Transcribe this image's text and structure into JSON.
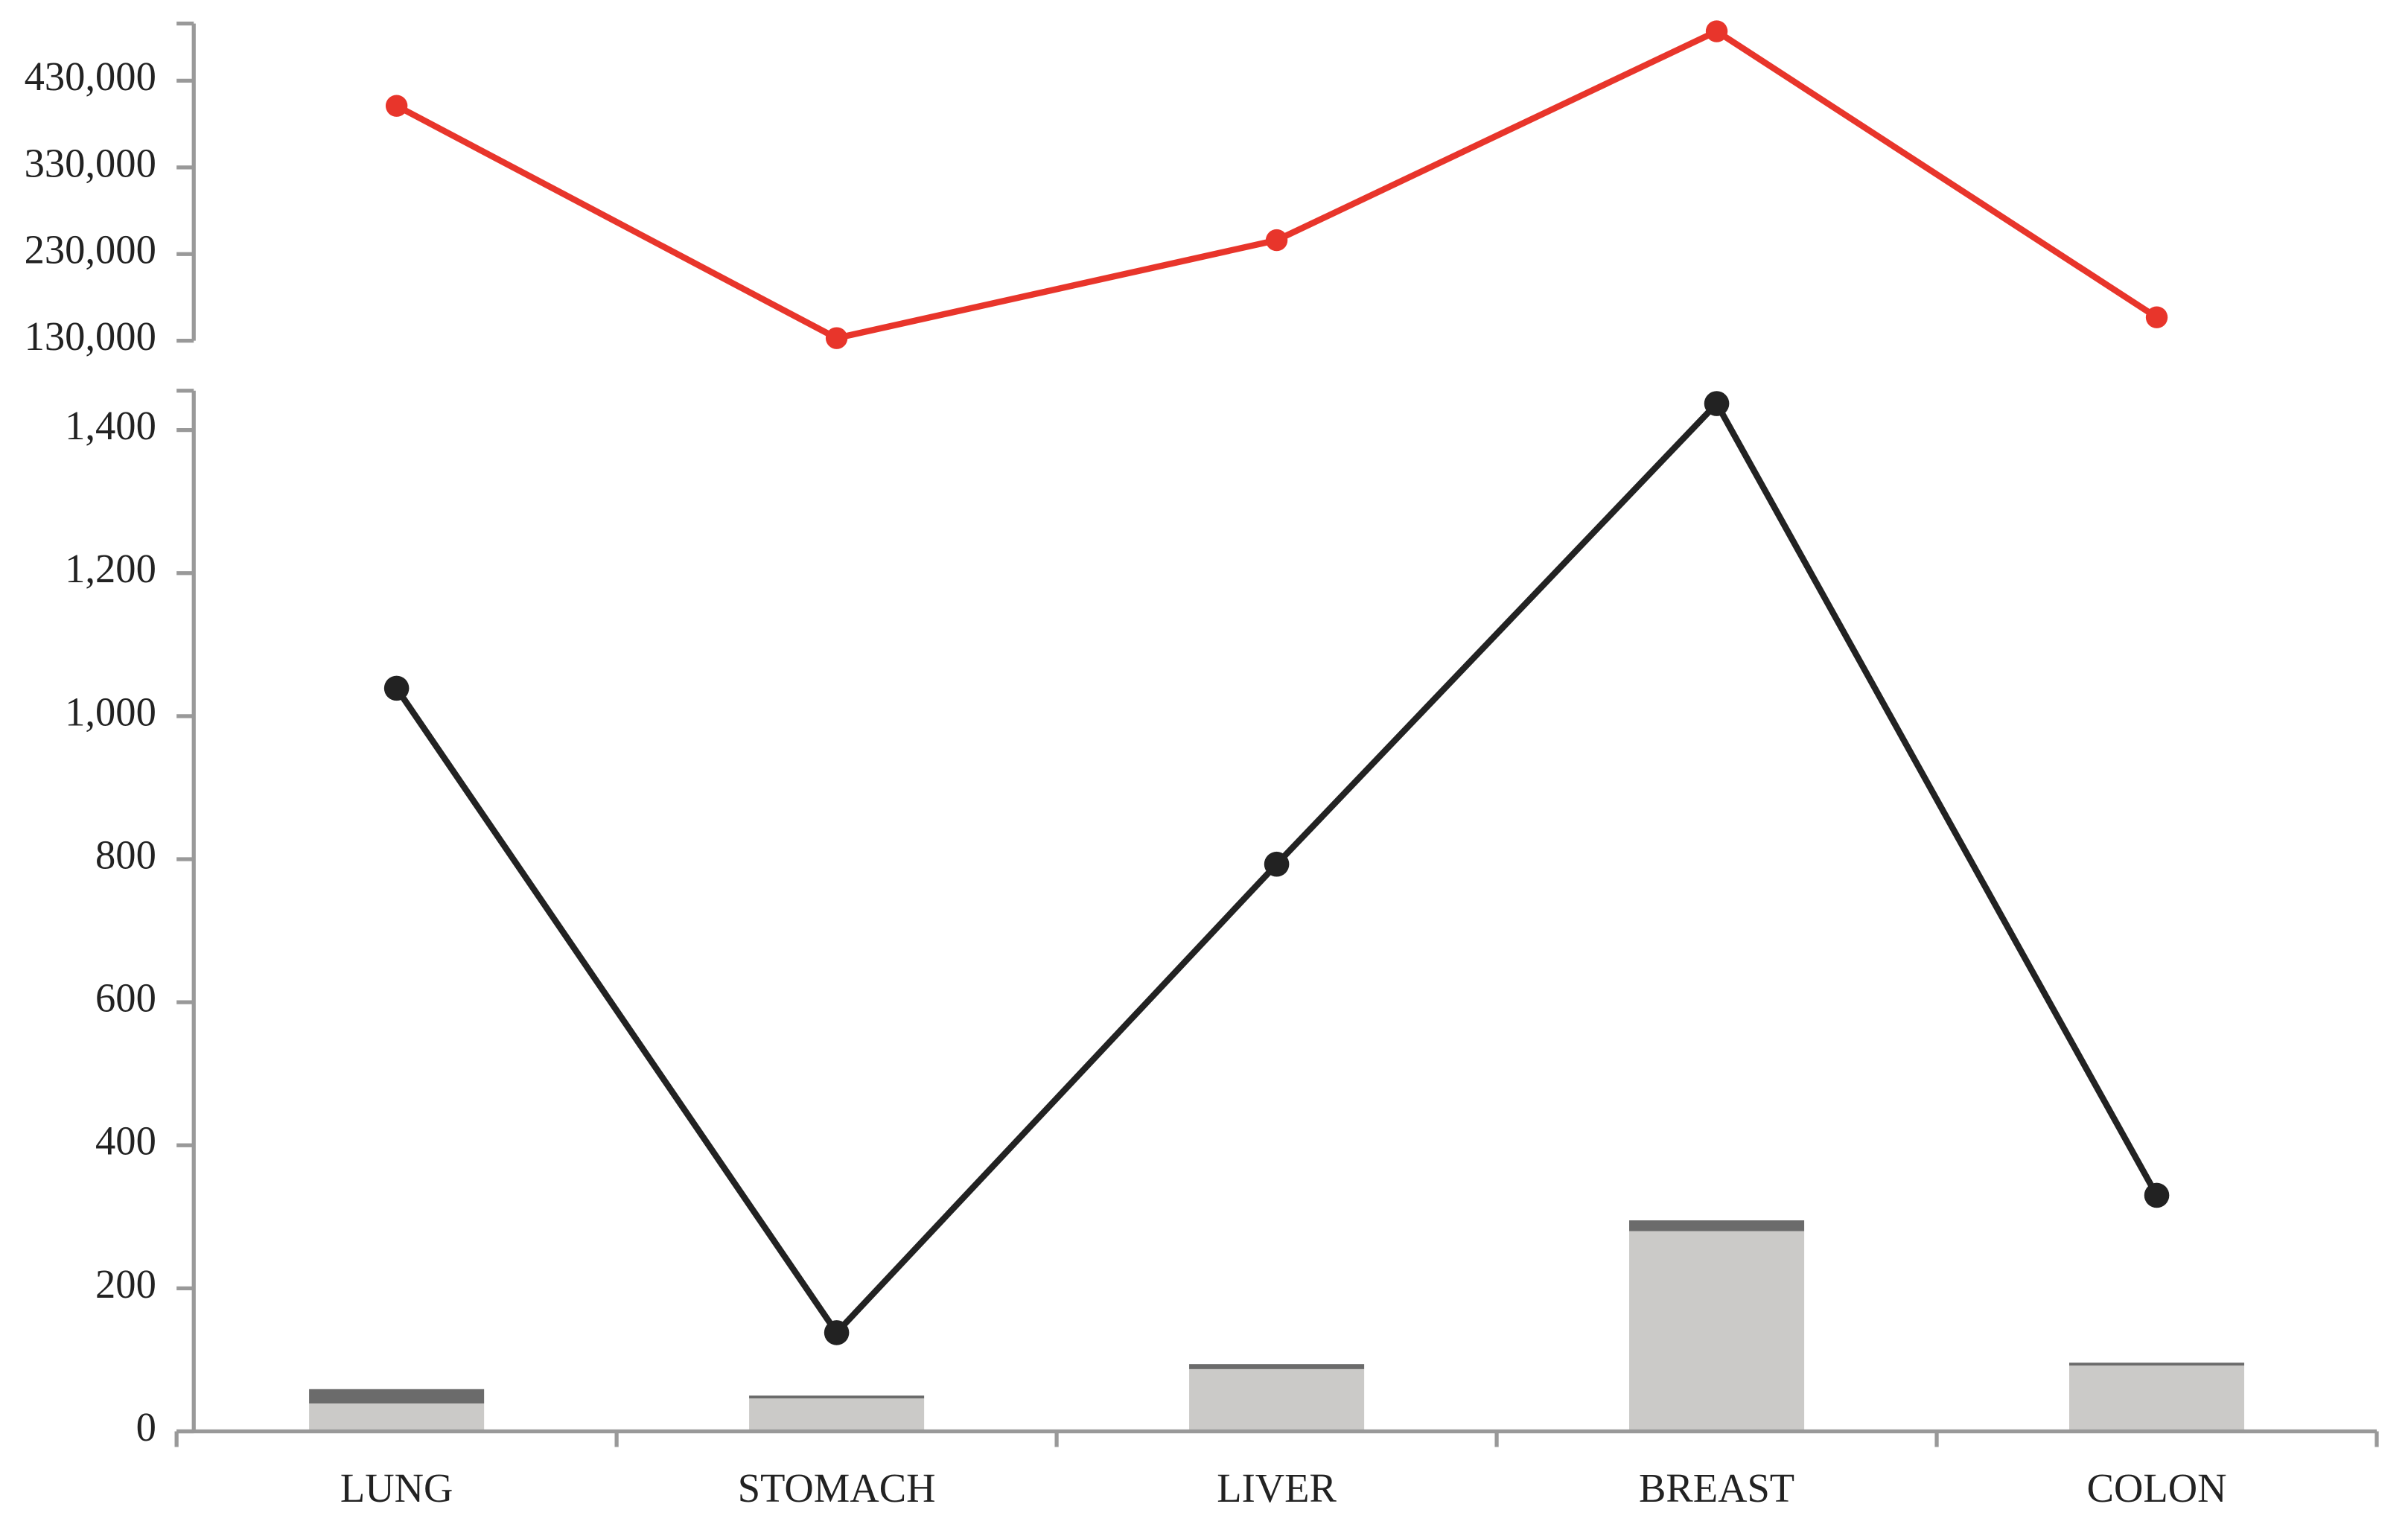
{
  "chart_data": [
    {
      "type": "line",
      "values": [
        401000,
        133000,
        246000,
        487000,
        157000
      ],
      "color": "#e8352b",
      "ylim": [
        130000,
        496000
      ],
      "yticks": [
        {
          "value": 130000,
          "label": "130,000"
        },
        {
          "value": 230000,
          "label": "230,000"
        },
        {
          "value": 330000,
          "label": "330,000"
        },
        {
          "value": 430000,
          "label": "430,000"
        }
      ]
    },
    {
      "type": "combo",
      "categories": [
        "LUNG",
        "STOMACH",
        "LIVER",
        "BREAST",
        "COLON"
      ],
      "bars": [
        {
          "color": "#cbcac8",
          "values": [
            39,
            46,
            87,
            280,
            92
          ]
        },
        {
          "color": "#6b6b6b",
          "values": [
            20,
            4,
            7,
            15,
            4
          ]
        }
      ],
      "line": {
        "color": "#222222",
        "values": [
          1039,
          138,
          793,
          1437,
          330
        ]
      },
      "ylim": [
        0,
        1455
      ],
      "yticks": [
        0,
        200,
        400,
        600,
        800,
        {
          "value": 1000,
          "label": "1,000"
        },
        {
          "value": 1200,
          "label": "1,200"
        },
        {
          "value": 1400,
          "label": "1,400"
        }
      ]
    }
  ]
}
